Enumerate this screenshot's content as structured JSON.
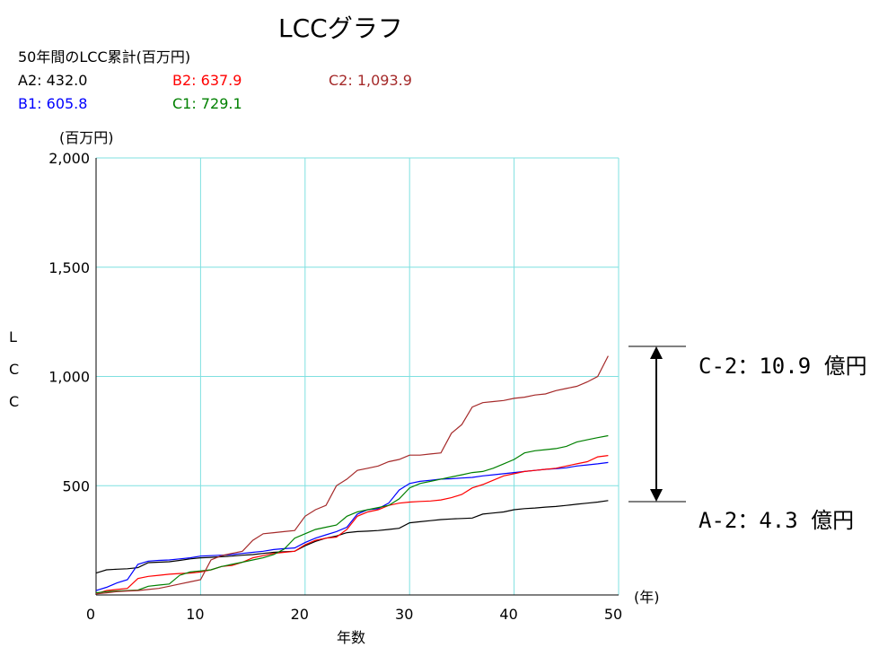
{
  "title": "LCCグラフ",
  "subtitle": "50年間のLCC累計(百万円)",
  "legend": [
    {
      "label": "A2",
      "value": "432.0",
      "color": "#000000"
    },
    {
      "label": "B1",
      "value": "605.8",
      "color": "#0000ff"
    },
    {
      "label": "B2",
      "value": "637.9",
      "color": "#ff0000"
    },
    {
      "label": "C1",
      "value": "729.1",
      "color": "#008000"
    },
    {
      "label": "C2",
      "value": "1,093.9",
      "color": "#a52a2a"
    }
  ],
  "legend_separator": ":",
  "callouts": {
    "top": "C-2：10.9 億円",
    "bottom": "A-2：4.3 億円"
  },
  "colors": {
    "grid": "#7fe0e0",
    "axis": "#000000",
    "annotation": "#000000"
  },
  "chart_data": {
    "type": "line",
    "title": "LCCグラフ",
    "xlabel": "年数",
    "x_unit": "(年)",
    "ylabel": "LCC",
    "y_unit": "(百万円)",
    "xlim": [
      0,
      50
    ],
    "ylim": [
      0,
      2000
    ],
    "x_ticks": [
      0,
      10,
      20,
      30,
      40,
      50
    ],
    "x_tick_labels": [
      "0",
      "10",
      "20",
      "30",
      "40",
      "50"
    ],
    "y_ticks": [
      500,
      1000,
      1500,
      2000
    ],
    "y_tick_labels": [
      "500",
      "1,000",
      "1,500",
      "2,000"
    ],
    "grid": true,
    "x": [
      0,
      1,
      2,
      3,
      4,
      5,
      6,
      7,
      8,
      9,
      10,
      11,
      12,
      13,
      14,
      15,
      16,
      17,
      18,
      19,
      20,
      21,
      22,
      23,
      24,
      25,
      26,
      27,
      28,
      29,
      30,
      31,
      32,
      33,
      34,
      35,
      36,
      37,
      38,
      39,
      40,
      41,
      42,
      43,
      44,
      45,
      46,
      47,
      48,
      49
    ],
    "series": [
      {
        "name": "A2",
        "color": "#000000",
        "values": [
          100,
          115,
          118,
          120,
          125,
          148,
          150,
          152,
          158,
          165,
          170,
          172,
          175,
          178,
          182,
          185,
          190,
          195,
          198,
          200,
          225,
          245,
          260,
          270,
          285,
          290,
          292,
          295,
          300,
          305,
          330,
          335,
          340,
          345,
          348,
          350,
          352,
          370,
          375,
          380,
          390,
          395,
          398,
          402,
          405,
          410,
          415,
          420,
          425,
          432
        ]
      },
      {
        "name": "B1",
        "color": "#0000ff",
        "values": [
          20,
          35,
          55,
          70,
          140,
          155,
          158,
          160,
          165,
          170,
          178,
          180,
          182,
          185,
          190,
          195,
          200,
          208,
          212,
          215,
          240,
          260,
          275,
          290,
          310,
          370,
          390,
          395,
          420,
          480,
          510,
          520,
          525,
          530,
          532,
          535,
          538,
          545,
          550,
          555,
          560,
          565,
          570,
          575,
          578,
          582,
          590,
          595,
          600,
          606
        ]
      },
      {
        "name": "B2",
        "color": "#ff0000",
        "values": [
          5,
          20,
          25,
          30,
          75,
          85,
          90,
          95,
          98,
          100,
          105,
          115,
          130,
          135,
          150,
          170,
          180,
          190,
          195,
          200,
          230,
          250,
          260,
          265,
          300,
          360,
          380,
          390,
          410,
          420,
          425,
          428,
          430,
          435,
          445,
          460,
          490,
          505,
          525,
          545,
          555,
          565,
          570,
          575,
          580,
          590,
          600,
          610,
          632,
          638
        ]
      },
      {
        "name": "C1",
        "color": "#008000",
        "values": [
          10,
          15,
          18,
          20,
          22,
          40,
          45,
          50,
          90,
          105,
          110,
          115,
          130,
          140,
          150,
          160,
          170,
          185,
          210,
          260,
          280,
          300,
          310,
          320,
          360,
          380,
          390,
          400,
          410,
          440,
          490,
          510,
          520,
          530,
          540,
          550,
          560,
          565,
          580,
          600,
          620,
          650,
          660,
          665,
          670,
          680,
          700,
          710,
          720,
          729
        ]
      },
      {
        "name": "C2",
        "color": "#a52a2a",
        "values": [
          5,
          10,
          15,
          18,
          20,
          25,
          30,
          40,
          50,
          60,
          70,
          160,
          180,
          190,
          200,
          250,
          280,
          285,
          290,
          295,
          360,
          390,
          410,
          500,
          530,
          570,
          580,
          590,
          610,
          620,
          640,
          640,
          645,
          650,
          740,
          780,
          860,
          880,
          885,
          890,
          900,
          905,
          915,
          920,
          935,
          945,
          955,
          975,
          1000,
          1094
        ]
      }
    ]
  }
}
